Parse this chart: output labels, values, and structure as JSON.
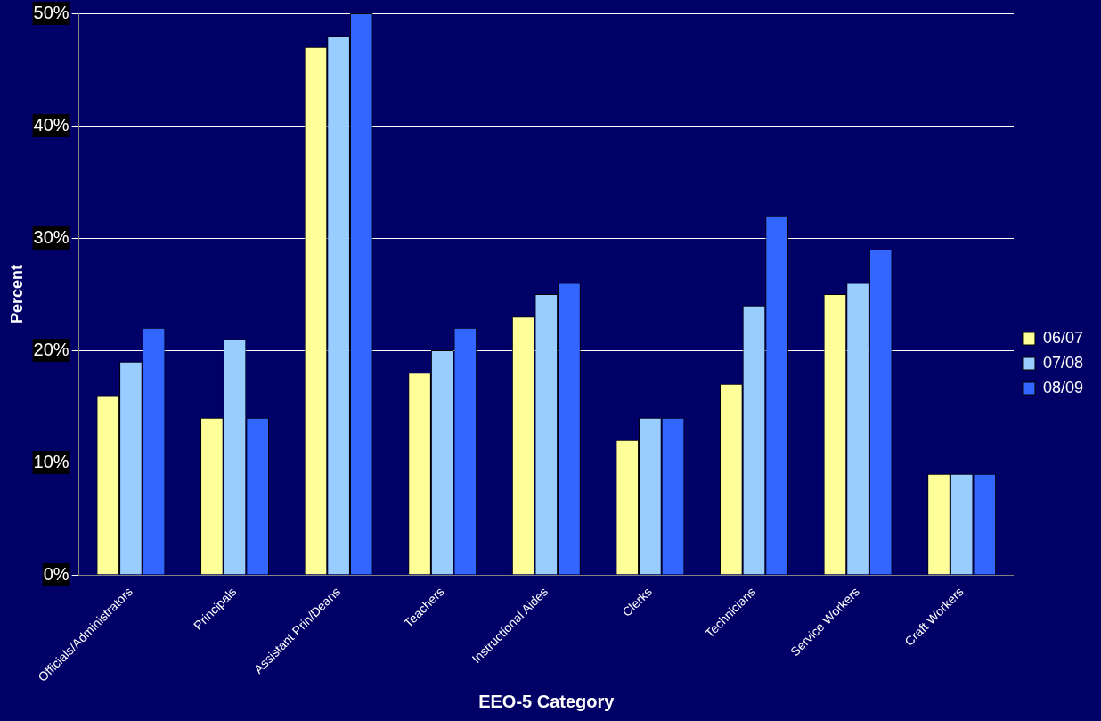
{
  "chart_data": {
    "type": "bar",
    "xlabel": "EEO-5 Category",
    "ylabel": "Percent",
    "categories": [
      "Officials/Administrators",
      "Principals",
      "Assistant Prin/Deans",
      "Teachers",
      "Instructional Aides",
      "Clerks",
      "Technicians",
      "Service Workers",
      "Craft Workers"
    ],
    "series": [
      {
        "name": "06/07",
        "color": "#ffff99",
        "values": [
          16,
          14,
          47,
          18,
          23,
          12,
          17,
          25,
          9
        ]
      },
      {
        "name": "07/08",
        "color": "#99ccff",
        "values": [
          19,
          21,
          48,
          20,
          25,
          14,
          24,
          26,
          9
        ]
      },
      {
        "name": "08/09",
        "color": "#3366ff",
        "values": [
          22,
          14,
          50,
          22,
          26,
          14,
          32,
          29,
          9
        ]
      }
    ],
    "ylim": [
      0,
      50
    ],
    "yticks": [
      {
        "value": 0,
        "label": "0%"
      },
      {
        "value": 10,
        "label": "10%"
      },
      {
        "value": 20,
        "label": "20%"
      },
      {
        "value": 30,
        "label": "30%"
      },
      {
        "value": 40,
        "label": "40%"
      },
      {
        "value": 50,
        "label": "50%"
      }
    ],
    "grid": "y",
    "legend": "right"
  }
}
